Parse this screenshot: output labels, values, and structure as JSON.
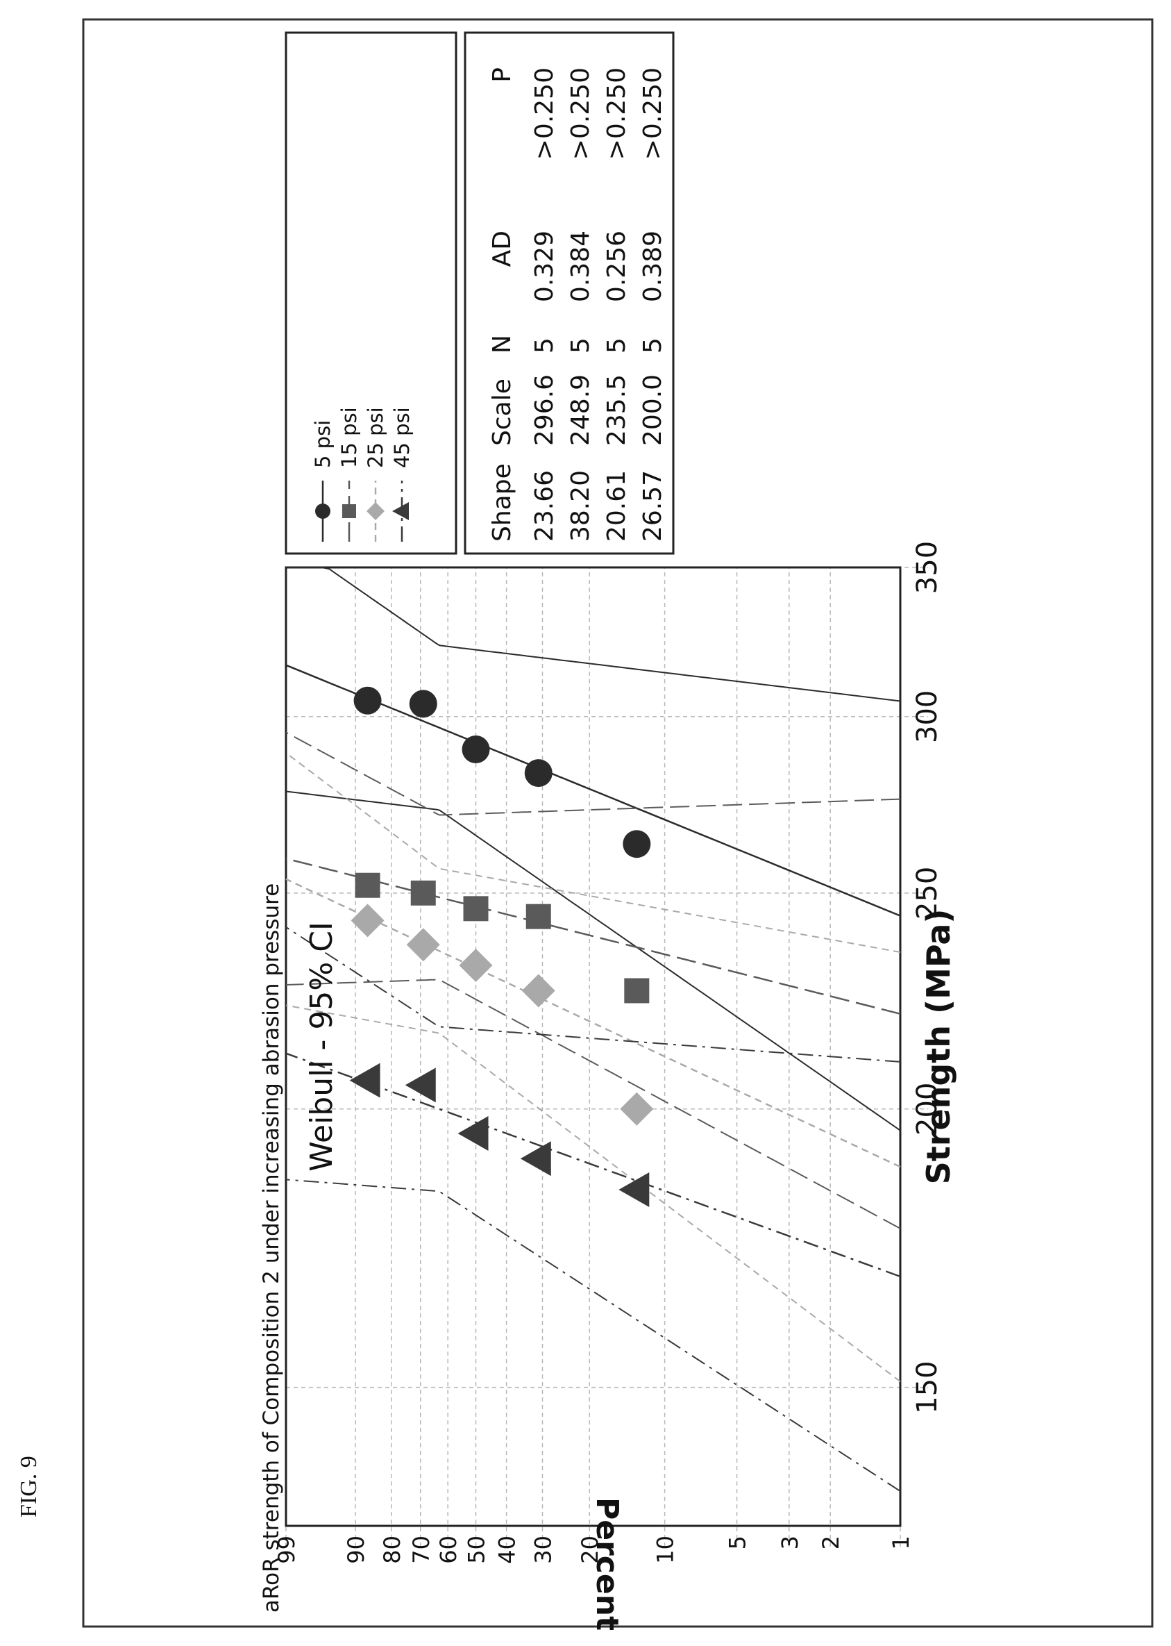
{
  "figure_label": "FIG. 9",
  "chart_data": {
    "type": "scatter",
    "title": "aRoR strength of Composition 2 under increasing abrasion pressure",
    "subtitle": "Weibull - 95% CI",
    "xlabel": "Strength (MPa)",
    "ylabel": "Percent",
    "x_scale": "log",
    "y_scale": "weibull",
    "xlim": [
      130,
      350
    ],
    "ylim": [
      1,
      99
    ],
    "x_ticks": [
      150,
      200,
      250,
      300,
      350
    ],
    "y_ticks": [
      1,
      2,
      3,
      5,
      10,
      20,
      30,
      40,
      50,
      60,
      70,
      80,
      90,
      99
    ],
    "grid": true,
    "legend_position": "top-right",
    "series": [
      {
        "name": "5 psi",
        "marker": "circle",
        "color": "#2b2b2b",
        "line": "solid",
        "x": [
          263,
          283,
          290,
          304,
          305
        ],
        "y": [
          13,
          31,
          50,
          69,
          87
        ],
        "shape": 23.66,
        "scale": 296.6,
        "N": 5,
        "AD": 0.329,
        "P": ">0.250"
      },
      {
        "name": "15 psi",
        "marker": "square",
        "color": "#5a5a5a",
        "line": "long-dash",
        "x": [
          226,
          244,
          246,
          250,
          252
        ],
        "y": [
          13,
          31,
          50,
          69,
          87
        ],
        "shape": 38.2,
        "scale": 248.9,
        "N": 5,
        "AD": 0.384,
        "P": ">0.250"
      },
      {
        "name": "25 psi",
        "marker": "diamond",
        "color": "#a9a9a9",
        "line": "short-dash",
        "x": [
          200,
          226,
          232,
          237,
          243
        ],
        "y": [
          13,
          31,
          50,
          69,
          87
        ],
        "shape": 20.61,
        "scale": 235.5,
        "N": 5,
        "AD": 0.256,
        "P": ">0.250"
      },
      {
        "name": "45 psi",
        "marker": "triangle",
        "color": "#3a3a3a",
        "line": "dash-dot",
        "x": [
          184,
          190,
          195,
          205,
          206
        ],
        "y": [
          13,
          31,
          50,
          69,
          87
        ],
        "shape": 26.57,
        "scale": 200.0,
        "N": 5,
        "AD": 0.389,
        "P": ">0.250"
      }
    ],
    "stats_table": {
      "headers": [
        "Shape",
        "Scale",
        "N",
        "AD",
        "P"
      ],
      "rows": [
        [
          "23.66",
          "296.6",
          "5",
          "0.329",
          ">0.250"
        ],
        [
          "38.20",
          "248.9",
          "5",
          "0.384",
          ">0.250"
        ],
        [
          "20.61",
          "235.5",
          "5",
          "0.256",
          ">0.250"
        ],
        [
          "26.57",
          "200.0",
          "5",
          "0.389",
          ">0.250"
        ]
      ]
    }
  }
}
